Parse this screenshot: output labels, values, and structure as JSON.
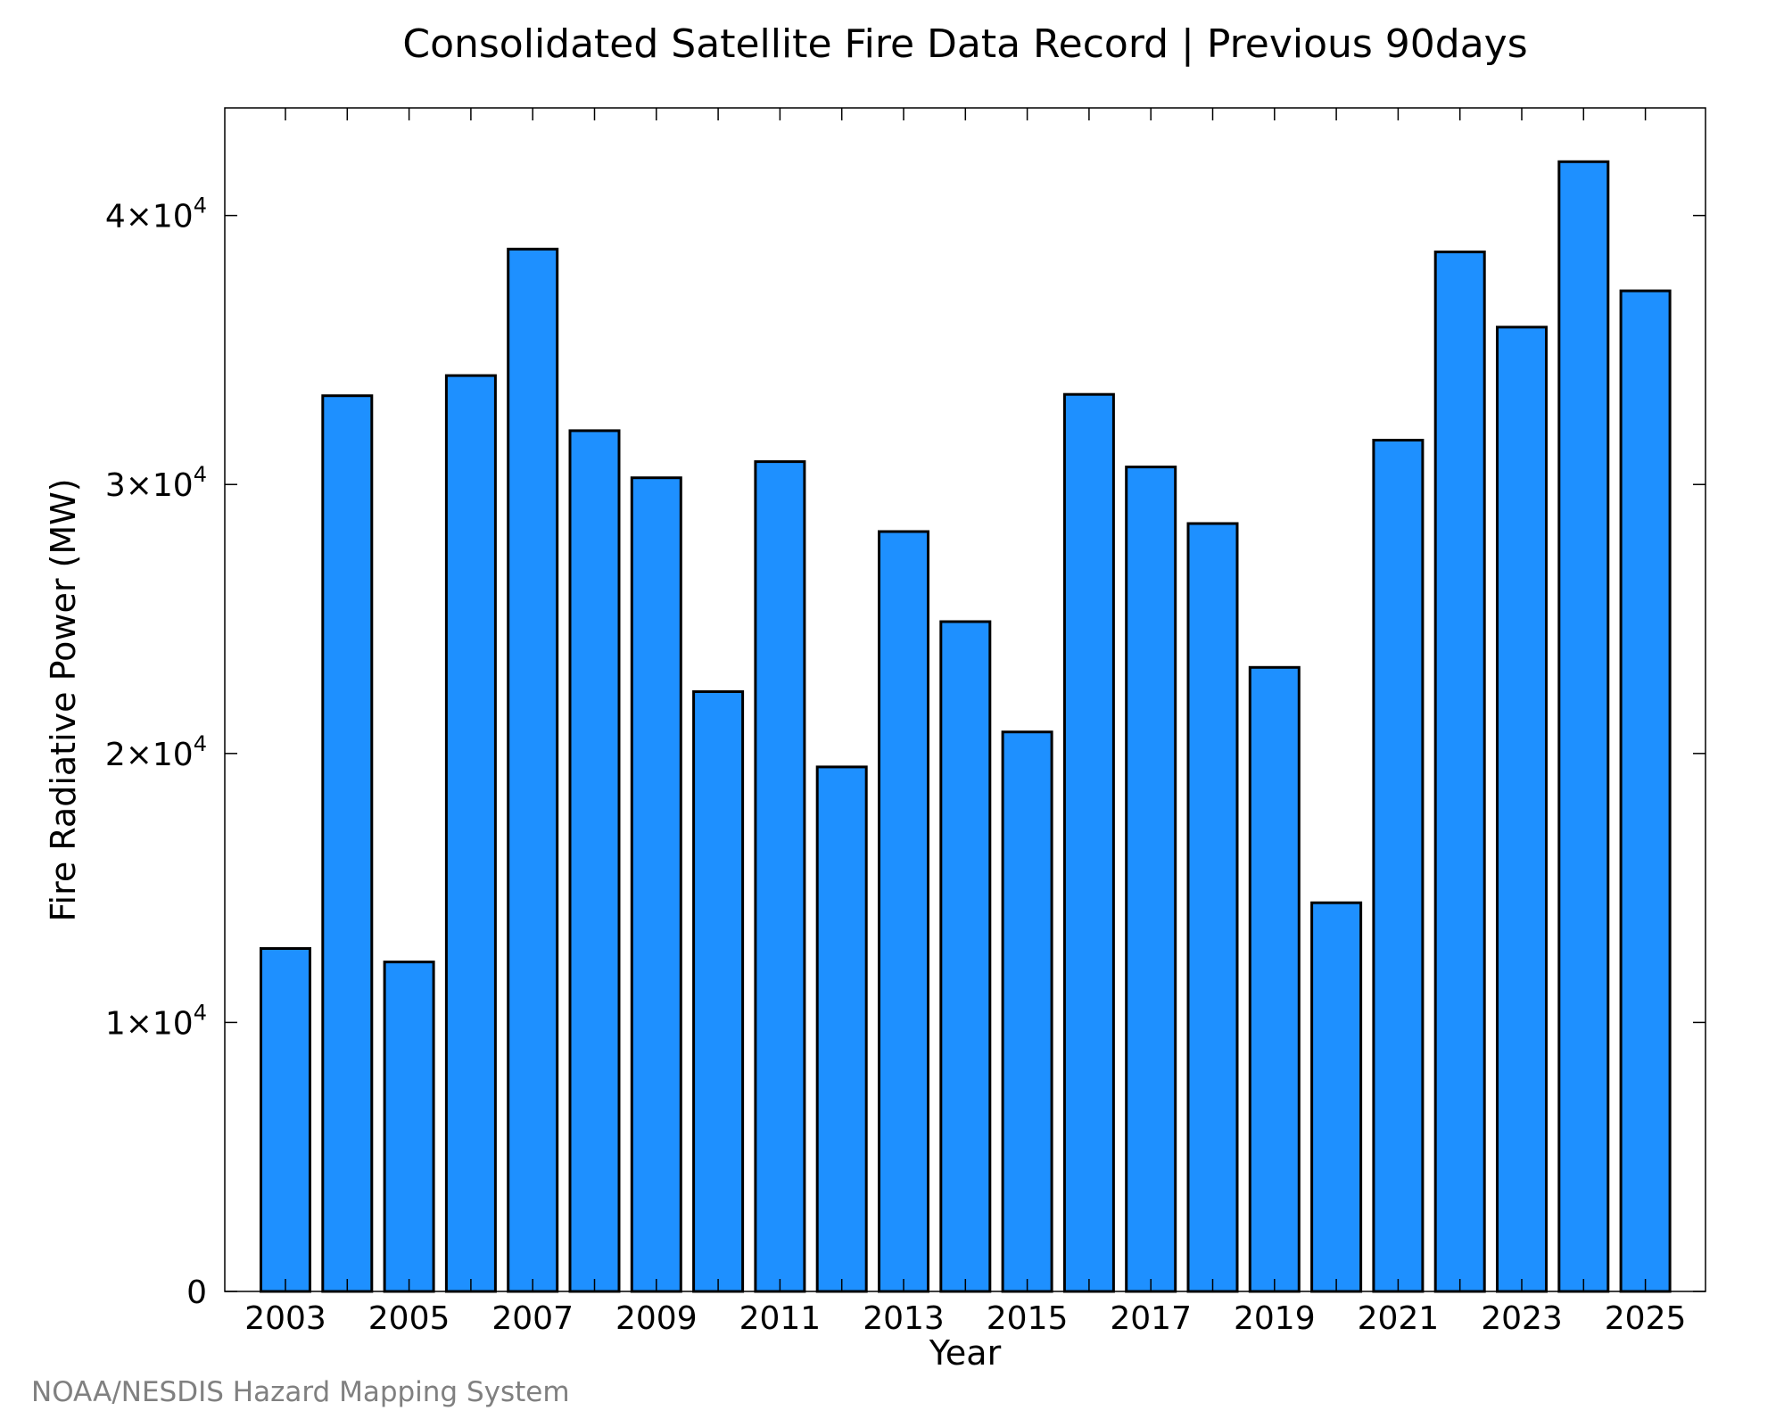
{
  "chart_data": {
    "type": "bar",
    "title": "Consolidated Satellite Fire Data Record | Previous 90days",
    "xlabel": "Year",
    "ylabel": "Fire Radiative Power (MW)",
    "categories": [
      "2003",
      "2004",
      "2005",
      "2006",
      "2007",
      "2008",
      "2009",
      "2010",
      "2011",
      "2012",
      "2013",
      "2014",
      "2015",
      "2016",
      "2017",
      "2018",
      "2019",
      "2020",
      "2021",
      "2022",
      "2023",
      "2024",
      "2025"
    ],
    "values": [
      12750,
      33300,
      12250,
      34050,
      38750,
      32000,
      30250,
      22300,
      30850,
      19500,
      28250,
      24900,
      20800,
      33350,
      30650,
      28550,
      23200,
      14450,
      31650,
      38650,
      35850,
      42000,
      37200
    ],
    "x_tick_labels": [
      "2003",
      "2005",
      "2007",
      "2009",
      "2011",
      "2013",
      "2015",
      "2017",
      "2019",
      "2021",
      "2023",
      "2025"
    ],
    "y_ticks": [
      {
        "value": 0,
        "mantissa": "0",
        "exp": ""
      },
      {
        "value": 10000,
        "mantissa": "1×10",
        "exp": "4"
      },
      {
        "value": 20000,
        "mantissa": "2×10",
        "exp": "4"
      },
      {
        "value": 30000,
        "mantissa": "3×10",
        "exp": "4"
      },
      {
        "value": 40000,
        "mantissa": "4×10",
        "exp": "4"
      }
    ],
    "ylim": [
      0,
      44000
    ],
    "grid": false,
    "bar_color": "#1E90FF",
    "legend": "none"
  },
  "footer": {
    "credit": "NOAA/NESDIS Hazard Mapping System"
  }
}
